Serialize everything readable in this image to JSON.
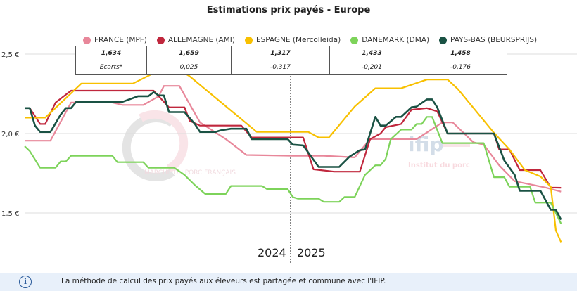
{
  "title": "Estimations prix payés - Europe",
  "table": {
    "values": [
      "1,634",
      "1,659",
      "1,317",
      "1,433",
      "1,458"
    ],
    "ecarts_label": "Ecarts*",
    "ecarts": [
      "0,025",
      "-0,317",
      "-0,201",
      "-0,176"
    ]
  },
  "footer": {
    "text": "La méthode de calcul des prix payés aux éleveurs est partagée et commune avec l'IFIP.",
    "icon": "info-icon"
  },
  "watermarks": {
    "left": "MARCHÉ DU PORC FRANÇAIS",
    "right_logo": "ifip",
    "right_sub": "Institut du porc"
  },
  "chart_data": {
    "type": "line",
    "title": "Estimations prix payés - Europe",
    "x_unit": "[year, week, value]",
    "year_labels": [
      "2024",
      "2025"
    ],
    "yticks": [
      {
        "v": 2.5,
        "label": "2,5 €"
      },
      {
        "v": 2.0,
        "label": "2,0 €"
      },
      {
        "v": 1.5,
        "label": "1,5 €"
      }
    ],
    "ylim": [
      1.3,
      2.45
    ],
    "grid": true,
    "legend": "top",
    "series": [
      {
        "name": "FRANCE (MPF)",
        "color": "#e8879a",
        "points": [
          [
            2024,
            1,
            1.955
          ],
          [
            2024,
            6,
            1.955
          ],
          [
            2024,
            10,
            2.195
          ],
          [
            2024,
            18,
            2.195
          ],
          [
            2024,
            20,
            2.18
          ],
          [
            2024,
            24,
            2.18
          ],
          [
            2024,
            27,
            2.235
          ],
          [
            2024,
            28,
            2.3
          ],
          [
            2024,
            31,
            2.3
          ],
          [
            2024,
            35,
            2.07
          ],
          [
            2024,
            40,
            1.965
          ],
          [
            2024,
            44,
            1.865
          ],
          [
            2025,
            1,
            1.86
          ],
          [
            2025,
            7,
            1.86
          ],
          [
            2025,
            13,
            1.85
          ],
          [
            2025,
            16,
            1.965
          ],
          [
            2025,
            25,
            1.965
          ],
          [
            2025,
            30,
            2.07
          ],
          [
            2025,
            32,
            2.07
          ],
          [
            2025,
            36,
            1.945
          ],
          [
            2025,
            38,
            1.93
          ],
          [
            2025,
            41,
            1.8
          ],
          [
            2025,
            44,
            1.7
          ],
          [
            2025,
            50,
            1.66
          ],
          [
            2025,
            53,
            1.634
          ]
        ]
      },
      {
        "name": "ALLEMAGNE (AMI)",
        "color": "#c0273d",
        "points": [
          [
            2024,
            1,
            2.16
          ],
          [
            2024,
            2,
            2.16
          ],
          [
            2024,
            4,
            2.06
          ],
          [
            2024,
            5,
            2.06
          ],
          [
            2024,
            7,
            2.195
          ],
          [
            2024,
            10,
            2.27
          ],
          [
            2024,
            26,
            2.27
          ],
          [
            2024,
            29,
            2.165
          ],
          [
            2024,
            32,
            2.165
          ],
          [
            2024,
            33,
            2.08
          ],
          [
            2024,
            35,
            2.05
          ],
          [
            2024,
            43,
            2.05
          ],
          [
            2024,
            45,
            1.975
          ],
          [
            2025,
            1,
            1.975
          ],
          [
            2025,
            3,
            1.975
          ],
          [
            2025,
            5,
            1.775
          ],
          [
            2025,
            9,
            1.76
          ],
          [
            2025,
            14,
            1.76
          ],
          [
            2025,
            16,
            1.965
          ],
          [
            2025,
            18,
            2.0
          ],
          [
            2025,
            19,
            2.04
          ],
          [
            2025,
            22,
            2.06
          ],
          [
            2025,
            24,
            2.15
          ],
          [
            2025,
            27,
            2.16
          ],
          [
            2025,
            29,
            2.14
          ],
          [
            2025,
            31,
            2.0
          ],
          [
            2025,
            40,
            2.0
          ],
          [
            2025,
            41,
            1.9
          ],
          [
            2025,
            43,
            1.9
          ],
          [
            2025,
            45,
            1.77
          ],
          [
            2025,
            49,
            1.77
          ],
          [
            2025,
            51,
            1.66
          ],
          [
            2025,
            53,
            1.659
          ]
        ]
      },
      {
        "name": "ESPAGNE (Mercolleida)",
        "color": "#f8c000",
        "points": [
          [
            2024,
            1,
            2.1
          ],
          [
            2024,
            5,
            2.1
          ],
          [
            2024,
            12,
            2.315
          ],
          [
            2024,
            22,
            2.315
          ],
          [
            2024,
            26,
            2.38
          ],
          [
            2024,
            32,
            2.38
          ],
          [
            2024,
            33,
            2.36
          ],
          [
            2024,
            46,
            2.01
          ],
          [
            2025,
            1,
            2.01
          ],
          [
            2025,
            4,
            2.01
          ],
          [
            2025,
            6,
            1.975
          ],
          [
            2025,
            8,
            1.975
          ],
          [
            2025,
            13,
            2.17
          ],
          [
            2025,
            17,
            2.285
          ],
          [
            2025,
            22,
            2.285
          ],
          [
            2025,
            27,
            2.34
          ],
          [
            2025,
            31,
            2.34
          ],
          [
            2025,
            33,
            2.28
          ],
          [
            2025,
            40,
            2.005
          ],
          [
            2025,
            43,
            1.9
          ],
          [
            2025,
            46,
            1.77
          ],
          [
            2025,
            49,
            1.73
          ],
          [
            2025,
            51,
            1.665
          ],
          [
            2025,
            52,
            1.39
          ],
          [
            2025,
            53,
            1.317
          ]
        ]
      },
      {
        "name": "DANEMARK (DMA)",
        "color": "#7dd35a",
        "points": [
          [
            2024,
            1,
            1.92
          ],
          [
            2024,
            2,
            1.89
          ],
          [
            2024,
            4,
            1.785
          ],
          [
            2024,
            7,
            1.785
          ],
          [
            2024,
            8,
            1.825
          ],
          [
            2024,
            9,
            1.825
          ],
          [
            2024,
            10,
            1.86
          ],
          [
            2024,
            18,
            1.86
          ],
          [
            2024,
            19,
            1.82
          ],
          [
            2024,
            24,
            1.82
          ],
          [
            2024,
            25,
            1.785
          ],
          [
            2024,
            30,
            1.785
          ],
          [
            2024,
            32,
            1.74
          ],
          [
            2024,
            34,
            1.675
          ],
          [
            2024,
            36,
            1.62
          ],
          [
            2024,
            40,
            1.62
          ],
          [
            2024,
            41,
            1.67
          ],
          [
            2024,
            47,
            1.67
          ],
          [
            2024,
            48,
            1.65
          ],
          [
            2024,
            52,
            1.65
          ],
          [
            2025,
            1,
            1.6
          ],
          [
            2025,
            2,
            1.59
          ],
          [
            2025,
            6,
            1.59
          ],
          [
            2025,
            7,
            1.57
          ],
          [
            2025,
            10,
            1.57
          ],
          [
            2025,
            11,
            1.6
          ],
          [
            2025,
            13,
            1.6
          ],
          [
            2025,
            15,
            1.74
          ],
          [
            2025,
            17,
            1.8
          ],
          [
            2025,
            18,
            1.8
          ],
          [
            2025,
            19,
            1.84
          ],
          [
            2025,
            20,
            1.965
          ],
          [
            2025,
            22,
            2.025
          ],
          [
            2025,
            24,
            2.025
          ],
          [
            2025,
            25,
            2.06
          ],
          [
            2025,
            26,
            2.06
          ],
          [
            2025,
            27,
            2.105
          ],
          [
            2025,
            28,
            2.105
          ],
          [
            2025,
            30,
            1.94
          ],
          [
            2025,
            38,
            1.94
          ],
          [
            2025,
            40,
            1.725
          ],
          [
            2025,
            42,
            1.725
          ],
          [
            2025,
            43,
            1.665
          ],
          [
            2025,
            47,
            1.665
          ],
          [
            2025,
            48,
            1.565
          ],
          [
            2025,
            51,
            1.565
          ],
          [
            2025,
            53,
            1.433
          ]
        ]
      },
      {
        "name": "PAYS-BAS (BEURSPRIJS)",
        "color": "#1a5244",
        "points": [
          [
            2024,
            1,
            2.16
          ],
          [
            2024,
            2,
            2.16
          ],
          [
            2024,
            3,
            2.05
          ],
          [
            2024,
            4,
            2.01
          ],
          [
            2024,
            6,
            2.01
          ],
          [
            2024,
            8,
            2.12
          ],
          [
            2024,
            9,
            2.16
          ],
          [
            2024,
            10,
            2.16
          ],
          [
            2024,
            11,
            2.2
          ],
          [
            2024,
            20,
            2.2
          ],
          [
            2024,
            23,
            2.235
          ],
          [
            2024,
            25,
            2.235
          ],
          [
            2024,
            26,
            2.26
          ],
          [
            2024,
            27,
            2.24
          ],
          [
            2024,
            28,
            2.24
          ],
          [
            2024,
            29,
            2.135
          ],
          [
            2024,
            32,
            2.135
          ],
          [
            2024,
            34,
            2.06
          ],
          [
            2024,
            35,
            2.01
          ],
          [
            2024,
            38,
            2.01
          ],
          [
            2024,
            39,
            2.02
          ],
          [
            2024,
            41,
            2.03
          ],
          [
            2024,
            44,
            2.03
          ],
          [
            2024,
            45,
            1.965
          ],
          [
            2024,
            52,
            1.965
          ],
          [
            2025,
            1,
            1.93
          ],
          [
            2025,
            3,
            1.925
          ],
          [
            2025,
            6,
            1.79
          ],
          [
            2025,
            10,
            1.79
          ],
          [
            2025,
            12,
            1.855
          ],
          [
            2025,
            14,
            1.895
          ],
          [
            2025,
            15,
            1.9
          ],
          [
            2025,
            17,
            2.105
          ],
          [
            2025,
            18,
            2.05
          ],
          [
            2025,
            19,
            2.05
          ],
          [
            2025,
            21,
            2.105
          ],
          [
            2025,
            22,
            2.105
          ],
          [
            2025,
            24,
            2.165
          ],
          [
            2025,
            25,
            2.17
          ],
          [
            2025,
            27,
            2.215
          ],
          [
            2025,
            28,
            2.215
          ],
          [
            2025,
            29,
            2.165
          ],
          [
            2025,
            31,
            2.0
          ],
          [
            2025,
            40,
            2.0
          ],
          [
            2025,
            42,
            1.83
          ],
          [
            2025,
            44,
            1.74
          ],
          [
            2025,
            45,
            1.64
          ],
          [
            2025,
            49,
            1.64
          ],
          [
            2025,
            51,
            1.52
          ],
          [
            2025,
            52,
            1.52
          ],
          [
            2025,
            53,
            1.458
          ]
        ]
      }
    ]
  }
}
